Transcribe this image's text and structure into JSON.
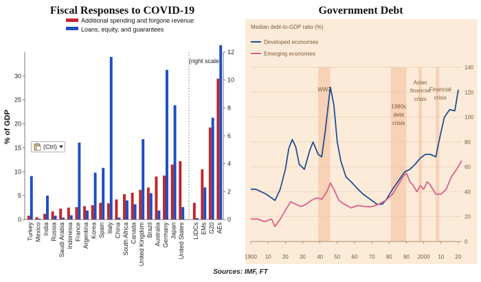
{
  "chart_data": [
    {
      "type": "bar",
      "title": "Fiscal Responses to COVID-19",
      "ylabel": "% of GDP",
      "ylim": [
        0,
        35
      ],
      "yticks": [
        0,
        5,
        10,
        15,
        20,
        25,
        30
      ],
      "right_ylim": [
        0,
        12
      ],
      "right_yticks": [
        0,
        2,
        4,
        6,
        8,
        10,
        12
      ],
      "right_note": "(right scale)",
      "categories": [
        "Turkey",
        "Mexico",
        "India",
        "Russia",
        "Saudi Arabia",
        "Indonesia",
        "France",
        "Argentina",
        "Korea",
        "Spain",
        "Italy",
        "China",
        "South Africa",
        "Canada",
        "United Kingdom",
        "Brazil",
        "Australia",
        "Germany",
        "Japan",
        "United States"
      ],
      "right_categories": [
        "LIDCs",
        "EMs",
        "G20",
        "AEs"
      ],
      "series": [
        {
          "name": "Additional spending and forgone revenue",
          "color": "#c0272d",
          "values": [
            0.8,
            0.5,
            1.2,
            1.7,
            2.3,
            2.5,
            2.6,
            2.8,
            3.0,
            3.5,
            3.4,
            4.2,
            5.3,
            5.6,
            6.2,
            6.7,
            9.0,
            9.2,
            11.5,
            12.2
          ],
          "right_values": [
            1.2,
            3.6,
            6.6,
            10.1
          ]
        },
        {
          "name": "Loans, equity, and guarantees",
          "color": "#1e4fc2",
          "values": [
            9.1,
            0.2,
            5.0,
            0.8,
            0.4,
            0.9,
            16.1,
            1.9,
            9.8,
            10.8,
            34.0,
            0.4,
            4.0,
            3.2,
            16.8,
            5.5,
            1.9,
            31.3,
            23.9,
            2.6
          ],
          "right_values": [
            0.1,
            2.3,
            7.3,
            12.5
          ]
        }
      ]
    },
    {
      "type": "line",
      "title": "Government Debt",
      "subtitle": "Median debt-to-GDP ratio (%)",
      "ylim": [
        0,
        140
      ],
      "yticks": [
        0,
        20,
        40,
        60,
        80,
        100,
        120,
        140
      ],
      "xlim": [
        1900,
        2022
      ],
      "xticks": [
        1900,
        1910,
        1920,
        1930,
        1940,
        1950,
        1960,
        1970,
        1980,
        1990,
        2000,
        2010,
        2020
      ],
      "xtick_labels": [
        "1900",
        "10",
        "20",
        "30",
        "40",
        "50",
        "60",
        "70",
        "80",
        "90",
        "2000",
        "10",
        "20"
      ],
      "shaded_periods": [
        {
          "label": "WW2",
          "x": [
            1939,
            1946
          ]
        },
        {
          "label": "1980s debt crisis",
          "x": [
            1981,
            1990
          ]
        },
        {
          "label": "Asian financial crisis",
          "x": [
            1997,
            1999
          ]
        },
        {
          "label": "Financial crisis",
          "x": [
            2007,
            2009
          ]
        }
      ],
      "series": [
        {
          "name": "Developed economies",
          "color": "#1d4f91",
          "points": [
            [
              1900,
              42
            ],
            [
              1903,
              42
            ],
            [
              1906,
              40
            ],
            [
              1909,
              38
            ],
            [
              1912,
              35
            ],
            [
              1914,
              33
            ],
            [
              1917,
              42
            ],
            [
              1920,
              58
            ],
            [
              1922,
              75
            ],
            [
              1924,
              82
            ],
            [
              1926,
              76
            ],
            [
              1928,
              62
            ],
            [
              1931,
              58
            ],
            [
              1934,
              73
            ],
            [
              1936,
              80
            ],
            [
              1939,
              70
            ],
            [
              1941,
              68
            ],
            [
              1943,
              88
            ],
            [
              1945,
              112
            ],
            [
              1946,
              124
            ],
            [
              1948,
              110
            ],
            [
              1950,
              80
            ],
            [
              1952,
              65
            ],
            [
              1955,
              52
            ],
            [
              1958,
              48
            ],
            [
              1962,
              42
            ],
            [
              1965,
              38
            ],
            [
              1970,
              33
            ],
            [
              1973,
              30
            ],
            [
              1976,
              30
            ],
            [
              1978,
              33
            ],
            [
              1982,
              42
            ],
            [
              1986,
              50
            ],
            [
              1989,
              56
            ],
            [
              1992,
              58
            ],
            [
              1995,
              62
            ],
            [
              1998,
              67
            ],
            [
              2001,
              70
            ],
            [
              2004,
              70
            ],
            [
              2007,
              68
            ],
            [
              2008,
              75
            ],
            [
              2010,
              88
            ],
            [
              2012,
              100
            ],
            [
              2015,
              106
            ],
            [
              2018,
              105
            ],
            [
              2020,
              122
            ]
          ]
        },
        {
          "name": "Emerging economies",
          "color": "#d9608a",
          "points": [
            [
              1900,
              18
            ],
            [
              1904,
              18
            ],
            [
              1908,
              16
            ],
            [
              1912,
              18
            ],
            [
              1914,
              12
            ],
            [
              1917,
              18
            ],
            [
              1920,
              25
            ],
            [
              1923,
              32
            ],
            [
              1926,
              30
            ],
            [
              1929,
              28
            ],
            [
              1932,
              30
            ],
            [
              1935,
              33
            ],
            [
              1938,
              35
            ],
            [
              1941,
              34
            ],
            [
              1944,
              40
            ],
            [
              1946,
              47
            ],
            [
              1948,
              42
            ],
            [
              1951,
              33
            ],
            [
              1954,
              30
            ],
            [
              1958,
              27
            ],
            [
              1962,
              29
            ],
            [
              1966,
              28
            ],
            [
              1970,
              28
            ],
            [
              1974,
              30
            ],
            [
              1978,
              33
            ],
            [
              1982,
              38
            ],
            [
              1985,
              45
            ],
            [
              1988,
              52
            ],
            [
              1990,
              55
            ],
            [
              1992,
              48
            ],
            [
              1994,
              45
            ],
            [
              1996,
              40
            ],
            [
              1998,
              45
            ],
            [
              2000,
              42
            ],
            [
              2002,
              48
            ],
            [
              2004,
              45
            ],
            [
              2007,
              38
            ],
            [
              2010,
              38
            ],
            [
              2013,
              42
            ],
            [
              2016,
              52
            ],
            [
              2019,
              58
            ],
            [
              2022,
              65
            ]
          ]
        }
      ]
    }
  ],
  "source_text": "Sources: IMF, FT",
  "ctrl_label": "(Ctrl)",
  "icons": {
    "clipboard": "clipboard-icon",
    "dropdown": "caret-down-icon"
  }
}
